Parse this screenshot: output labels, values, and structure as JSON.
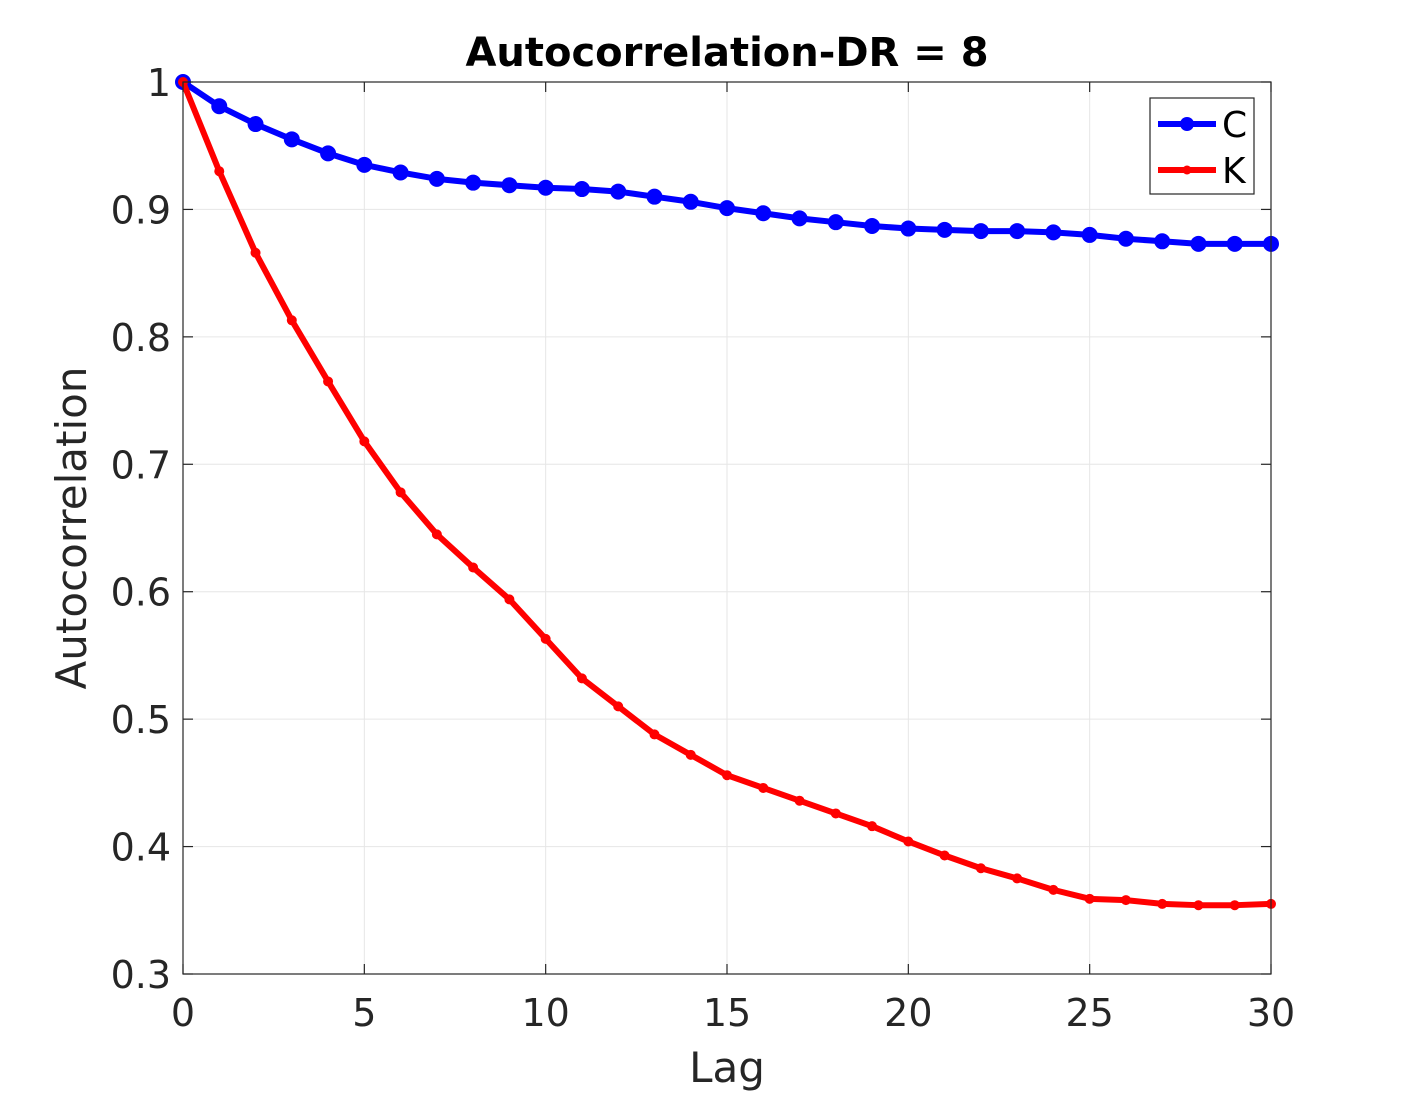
{
  "chart_data": {
    "type": "line",
    "title": "Autocorrelation-DR = 8",
    "xlabel": "Lag",
    "ylabel": "Autocorrelation",
    "xlim": [
      0,
      30
    ],
    "ylim": [
      0.3,
      1
    ],
    "xticks": [
      0,
      5,
      10,
      15,
      20,
      25,
      30
    ],
    "xtick_labels": [
      "0",
      "5",
      "10",
      "15",
      "20",
      "25",
      "30"
    ],
    "yticks": [
      0.3,
      0.4,
      0.5,
      0.6,
      0.7,
      0.8,
      0.9,
      1
    ],
    "ytick_labels": [
      "0.3",
      "0.4",
      "0.5",
      "0.6",
      "0.7",
      "0.8",
      "0.9",
      "1"
    ],
    "grid": true,
    "legend_position": "top-right",
    "x": [
      0,
      1,
      2,
      3,
      4,
      5,
      6,
      7,
      8,
      9,
      10,
      11,
      12,
      13,
      14,
      15,
      16,
      17,
      18,
      19,
      20,
      21,
      22,
      23,
      24,
      25,
      26,
      27,
      28,
      29,
      30
    ],
    "series": [
      {
        "name": "C",
        "color": "#0000ff",
        "marker": "circle-large",
        "values": [
          1.0,
          0.981,
          0.967,
          0.955,
          0.944,
          0.935,
          0.929,
          0.924,
          0.921,
          0.919,
          0.917,
          0.916,
          0.914,
          0.91,
          0.906,
          0.901,
          0.897,
          0.893,
          0.89,
          0.887,
          0.885,
          0.884,
          0.883,
          0.883,
          0.882,
          0.88,
          0.877,
          0.875,
          0.873,
          0.873,
          0.873
        ]
      },
      {
        "name": "K",
        "color": "#ff0000",
        "marker": "dot-small",
        "values": [
          1.0,
          0.93,
          0.866,
          0.813,
          0.765,
          0.718,
          0.678,
          0.645,
          0.619,
          0.594,
          0.563,
          0.532,
          0.51,
          0.488,
          0.472,
          0.456,
          0.446,
          0.436,
          0.426,
          0.416,
          0.404,
          0.393,
          0.383,
          0.375,
          0.366,
          0.359,
          0.358,
          0.355,
          0.354,
          0.354,
          0.355
        ]
      }
    ]
  }
}
